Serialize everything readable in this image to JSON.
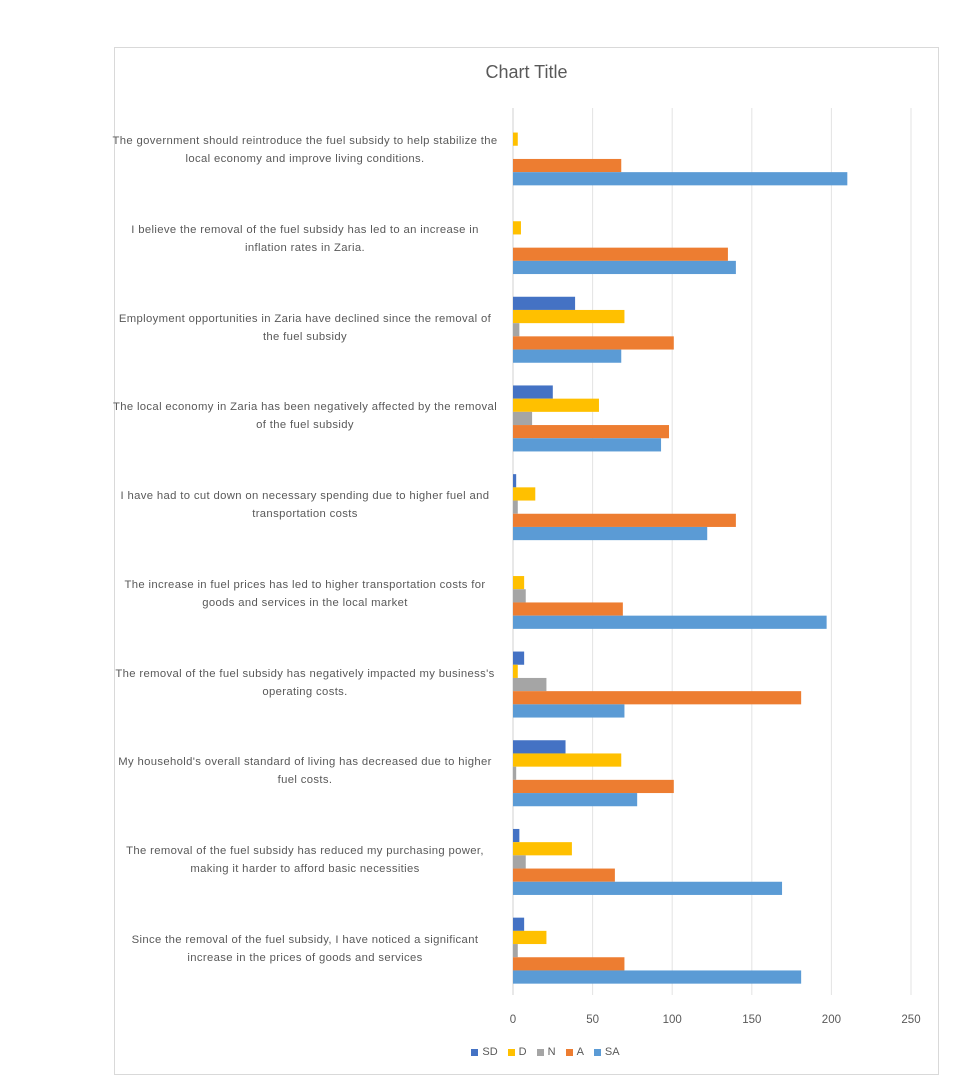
{
  "chart_data": {
    "type": "bar",
    "orientation": "horizontal",
    "title": "Chart Title",
    "xlabel": "",
    "ylabel": "",
    "xlim": [
      0,
      250
    ],
    "xticks": [
      0,
      50,
      100,
      150,
      200,
      250
    ],
    "grid": true,
    "legend_position": "bottom",
    "categories": [
      "The government should reintroduce the fuel subsidy to help stabilize the local economy and improve living conditions.",
      "I believe the removal of the fuel subsidy has led to an increase in inflation rates in Zaria.",
      "Employment opportunities in Zaria have declined since the removal of the fuel subsidy",
      "The local economy in Zaria has been negatively affected by the removal of the fuel subsidy",
      "I have had to cut down on necessary spending due to higher fuel and transportation costs",
      "The increase in fuel prices has led to higher transportation costs for goods and services in the local market",
      "The removal of the fuel subsidy has negatively impacted my business's operating costs.",
      "My household's overall standard of living has decreased due to higher fuel costs.",
      "The removal of the fuel subsidy has reduced my purchasing power, making it harder to afford basic necessities",
      "Since the removal of the fuel subsidy, I have noticed a significant increase in the prices of goods and services"
    ],
    "series": [
      {
        "name": "SD",
        "color": "#4472c4",
        "values": [
          0,
          0,
          39,
          25,
          2,
          0,
          7,
          33,
          4,
          7
        ]
      },
      {
        "name": "D",
        "color": "#ffc000",
        "values": [
          3,
          5,
          70,
          54,
          14,
          7,
          3,
          68,
          37,
          21
        ]
      },
      {
        "name": "N",
        "color": "#a5a5a5",
        "values": [
          0,
          0,
          4,
          12,
          3,
          8,
          21,
          2,
          8,
          3
        ]
      },
      {
        "name": "A",
        "color": "#ed7d31",
        "values": [
          68,
          135,
          101,
          98,
          140,
          69,
          181,
          101,
          64,
          70
        ]
      },
      {
        "name": "SA",
        "color": "#5b9bd5",
        "values": [
          210,
          140,
          68,
          93,
          122,
          197,
          70,
          78,
          169,
          181
        ]
      }
    ]
  }
}
